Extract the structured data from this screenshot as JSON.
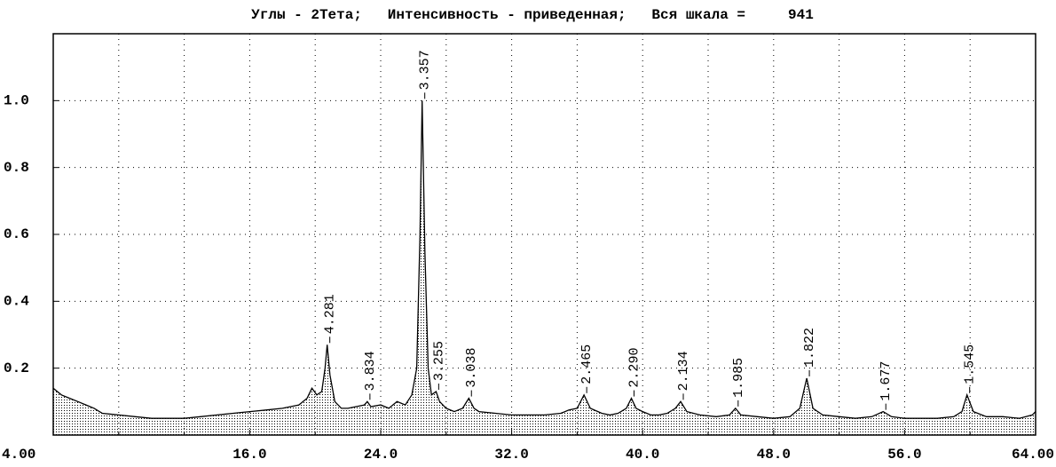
{
  "chart_data": {
    "type": "line",
    "title": "Углы - 2Тета;   Интенсивность - приведенная;   Вся шкала =     941",
    "x": [
      4,
      4.5,
      5,
      5.5,
      6,
      6.5,
      7,
      8,
      9,
      10,
      11,
      12,
      13,
      14,
      15,
      16,
      17,
      18,
      18.5,
      19,
      19.5,
      19.8,
      20.1,
      20.4,
      20.6,
      20.73,
      20.9,
      21.2,
      21.6,
      22,
      22.5,
      23,
      23.18,
      23.4,
      24,
      24.5,
      25,
      25.5,
      25.9,
      26.2,
      26.4,
      26.53,
      26.7,
      26.9,
      27.1,
      27.38,
      27.6,
      28,
      28.5,
      29,
      29.38,
      29.7,
      30,
      31,
      32,
      33,
      34,
      35,
      35.5,
      36,
      36.42,
      36.8,
      37.5,
      38,
      38.5,
      39,
      39.31,
      39.6,
      40,
      40.5,
      41,
      41.5,
      42,
      42.32,
      42.7,
      43.5,
      44.5,
      45.3,
      45.67,
      46,
      47,
      48,
      49,
      49.6,
      50.02,
      50.4,
      51,
      52,
      53,
      54,
      54.69,
      55.2,
      56,
      57,
      58,
      59,
      59.5,
      59.81,
      60.2,
      61,
      62,
      63,
      63.8,
      64
    ],
    "values": [
      0.14,
      0.12,
      0.11,
      0.1,
      0.09,
      0.08,
      0.065,
      0.06,
      0.055,
      0.05,
      0.05,
      0.05,
      0.055,
      0.06,
      0.065,
      0.07,
      0.075,
      0.08,
      0.085,
      0.09,
      0.11,
      0.14,
      0.12,
      0.13,
      0.2,
      0.27,
      0.18,
      0.1,
      0.08,
      0.08,
      0.085,
      0.09,
      0.1,
      0.085,
      0.09,
      0.08,
      0.1,
      0.09,
      0.12,
      0.2,
      0.6,
      1.0,
      0.55,
      0.2,
      0.12,
      0.13,
      0.1,
      0.08,
      0.07,
      0.08,
      0.11,
      0.08,
      0.07,
      0.065,
      0.06,
      0.06,
      0.06,
      0.065,
      0.075,
      0.08,
      0.12,
      0.08,
      0.065,
      0.06,
      0.065,
      0.08,
      0.11,
      0.08,
      0.07,
      0.06,
      0.06,
      0.065,
      0.08,
      0.1,
      0.07,
      0.06,
      0.055,
      0.06,
      0.08,
      0.06,
      0.055,
      0.05,
      0.055,
      0.08,
      0.17,
      0.08,
      0.06,
      0.055,
      0.05,
      0.055,
      0.07,
      0.055,
      0.05,
      0.05,
      0.05,
      0.055,
      0.07,
      0.12,
      0.07,
      0.055,
      0.055,
      0.05,
      0.06,
      0.07
    ],
    "color": "#000000",
    "peaks": {
      "x": [
        20.73,
        23.18,
        26.53,
        27.38,
        29.38,
        36.42,
        39.31,
        42.32,
        45.67,
        50.02,
        54.69,
        59.81
      ],
      "values": [
        0.27,
        0.1,
        1.0,
        0.13,
        0.11,
        0.12,
        0.11,
        0.1,
        0.08,
        0.17,
        0.07,
        0.12
      ],
      "labels": [
        "4.281",
        "3.834",
        "3.357",
        "3.255",
        "3.038",
        "2.465",
        "2.290",
        "2.134",
        "1.985",
        "1.822",
        "1.677",
        "1.545"
      ]
    },
    "xlim": [
      4,
      64
    ],
    "ylim": [
      0,
      1.2
    ],
    "xticks": [
      {
        "value": 4,
        "label": "4.00"
      },
      {
        "value": 16,
        "label": "16.0"
      },
      {
        "value": 24,
        "label": "24.0"
      },
      {
        "value": 32,
        "label": "32.0"
      },
      {
        "value": 40,
        "label": "40.0"
      },
      {
        "value": 48,
        "label": "48.0"
      },
      {
        "value": 56,
        "label": "56.0"
      },
      {
        "value": 64,
        "label": "64.00"
      }
    ],
    "minor_xticks": [
      8,
      12,
      20,
      28,
      36,
      44,
      52,
      60
    ],
    "yticks": [
      0.2,
      0.4,
      0.6,
      0.8,
      {
        "value": 1,
        "label": "1.0"
      }
    ],
    "grid": true
  }
}
